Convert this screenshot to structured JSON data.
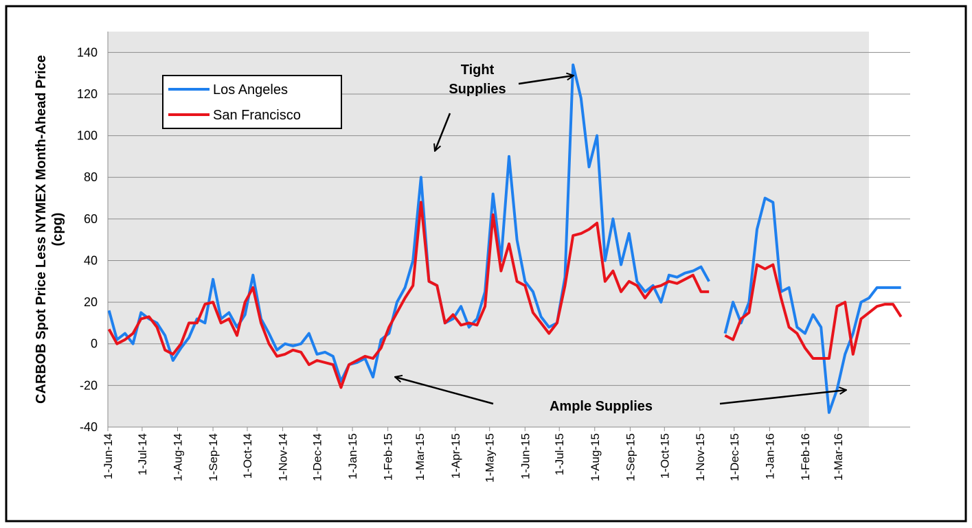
{
  "chart_data": {
    "type": "line",
    "y_label": "CARBOB Spot Price Less NYMEX Month-Ahead Price (cpg)",
    "annotations": [
      "Tight Supplies",
      "Ample Supplies"
    ],
    "legend": "upper left",
    "grid": true,
    "ylim": [
      -40,
      150
    ],
    "yticks": [
      -40,
      -20,
      0,
      20,
      40,
      60,
      80,
      100,
      120,
      140
    ],
    "xlim": [
      "2014-06-01",
      "2016-05-03"
    ],
    "xticks": [
      {
        "value": "2014-06-01",
        "label": "1-Jun-14"
      },
      {
        "value": "2014-07-01",
        "label": "1-Jul-14"
      },
      {
        "value": "2014-08-01",
        "label": "1-Aug-14"
      },
      {
        "value": "2014-09-01",
        "label": "1-Sep-14"
      },
      {
        "value": "2014-10-01",
        "label": "1-Oct-14"
      },
      {
        "value": "2014-11-01",
        "label": "1-Nov-14"
      },
      {
        "value": "2014-12-01",
        "label": "1-Dec-14"
      },
      {
        "value": "2015-01-01",
        "label": "1-Jan-15"
      },
      {
        "value": "2015-02-01",
        "label": "1-Feb-15"
      },
      {
        "value": "2015-03-01",
        "label": "1-Mar-15"
      },
      {
        "value": "2015-04-01",
        "label": "1-Apr-15"
      },
      {
        "value": "2015-05-01",
        "label": "1-May-15"
      },
      {
        "value": "2015-06-01",
        "label": "1-Jun-15"
      },
      {
        "value": "2015-07-01",
        "label": "1-Jul-15"
      },
      {
        "value": "2015-08-01",
        "label": "1-Aug-15"
      },
      {
        "value": "2015-09-01",
        "label": "1-Sep-15"
      },
      {
        "value": "2015-10-01",
        "label": "1-Oct-15"
      },
      {
        "value": "2015-11-01",
        "label": "1-Nov-15"
      },
      {
        "value": "2015-12-01",
        "label": "1-Dec-15"
      },
      {
        "value": "2016-01-01",
        "label": "1-Jan-16"
      },
      {
        "value": "2016-02-01",
        "label": "1-Feb-16"
      },
      {
        "value": "2016-03-01",
        "label": "1-Mar-16"
      }
    ],
    "x": [
      "2014-06-02",
      "2014-06-09",
      "2014-06-16",
      "2014-06-23",
      "2014-06-30",
      "2014-07-07",
      "2014-07-14",
      "2014-07-21",
      "2014-07-28",
      "2014-08-04",
      "2014-08-11",
      "2014-08-18",
      "2014-08-25",
      "2014-09-01",
      "2014-09-08",
      "2014-09-15",
      "2014-09-22",
      "2014-09-29",
      "2014-10-06",
      "2014-10-13",
      "2014-10-20",
      "2014-10-27",
      "2014-11-03",
      "2014-11-10",
      "2014-11-17",
      "2014-11-24",
      "2014-12-01",
      "2014-12-08",
      "2014-12-15",
      "2014-12-22",
      "2014-12-29",
      "2015-01-05",
      "2015-01-12",
      "2015-01-19",
      "2015-01-26",
      "2015-02-02",
      "2015-02-09",
      "2015-02-16",
      "2015-02-23",
      "2015-03-02",
      "2015-03-09",
      "2015-03-16",
      "2015-03-23",
      "2015-03-30",
      "2015-04-06",
      "2015-04-13",
      "2015-04-20",
      "2015-04-27",
      "2015-05-04",
      "2015-05-11",
      "2015-05-18",
      "2015-05-25",
      "2015-06-01",
      "2015-06-08",
      "2015-06-15",
      "2015-06-22",
      "2015-06-29",
      "2015-07-06",
      "2015-07-13",
      "2015-07-20",
      "2015-07-27",
      "2015-08-03",
      "2015-08-10",
      "2015-08-17",
      "2015-08-24",
      "2015-08-31",
      "2015-09-07",
      "2015-09-14",
      "2015-09-21",
      "2015-09-28",
      "2015-10-05",
      "2015-10-12",
      "2015-10-19",
      "2015-10-26",
      "2015-11-02",
      "2015-11-09",
      "2015-11-16",
      "2015-11-23",
      "2015-11-30",
      "2015-12-07",
      "2015-12-14",
      "2015-12-21",
      "2015-12-28",
      "2016-01-04",
      "2016-01-11",
      "2016-01-18",
      "2016-01-25",
      "2016-02-01",
      "2016-02-08",
      "2016-02-15",
      "2016-02-22",
      "2016-02-29",
      "2016-03-07",
      "2016-03-14",
      "2016-03-21",
      "2016-03-28",
      "2016-04-04",
      "2016-04-11",
      "2016-04-18",
      "2016-04-25"
    ],
    "series": [
      {
        "name": "Los Angeles",
        "color": "#1f80ee",
        "values": [
          16,
          2,
          5,
          0,
          15,
          12,
          10,
          4,
          -8,
          -2,
          3,
          12,
          10,
          31,
          12,
          15,
          8,
          14,
          33,
          12,
          5,
          -3,
          0,
          -1,
          0,
          5,
          -5,
          -4,
          -6,
          -18,
          -10,
          -9,
          -7,
          -16,
          2,
          5,
          20,
          27,
          40,
          80,
          30,
          28,
          10,
          12,
          18,
          8,
          12,
          25,
          72,
          40,
          90,
          50,
          30,
          25,
          13,
          8,
          10,
          32,
          134,
          118,
          85,
          100,
          40,
          60,
          38,
          53,
          30,
          25,
          28,
          20,
          33,
          32,
          34,
          35,
          37,
          30,
          null,
          5,
          20,
          10,
          20,
          55,
          70,
          68,
          25,
          27,
          8,
          5,
          14,
          8,
          -33,
          -22,
          -5,
          5,
          20,
          22,
          27,
          27,
          27,
          27
        ]
      },
      {
        "name": "San Francisco",
        "color": "#e8141c",
        "values": [
          7,
          0,
          2,
          5,
          12,
          13,
          8,
          -3,
          -5,
          0,
          10,
          10,
          19,
          20,
          10,
          12,
          4,
          20,
          27,
          10,
          0,
          -6,
          -5,
          -3,
          -4,
          -10,
          -8,
          -9,
          -10,
          -21,
          -10,
          -8,
          -6,
          -7,
          -2,
          8,
          15,
          22,
          28,
          68,
          30,
          28,
          10,
          14,
          9,
          10,
          9,
          18,
          62,
          35,
          48,
          30,
          28,
          15,
          10,
          5,
          10,
          28,
          52,
          53,
          55,
          58,
          30,
          35,
          25,
          30,
          28,
          22,
          27,
          28,
          30,
          29,
          31,
          33,
          25,
          25,
          null,
          4,
          2,
          12,
          15,
          38,
          36,
          38,
          22,
          8,
          5,
          -2,
          -7,
          -7,
          -7,
          18,
          20,
          -5,
          12,
          15,
          18,
          19,
          19,
          13
        ]
      }
    ]
  }
}
